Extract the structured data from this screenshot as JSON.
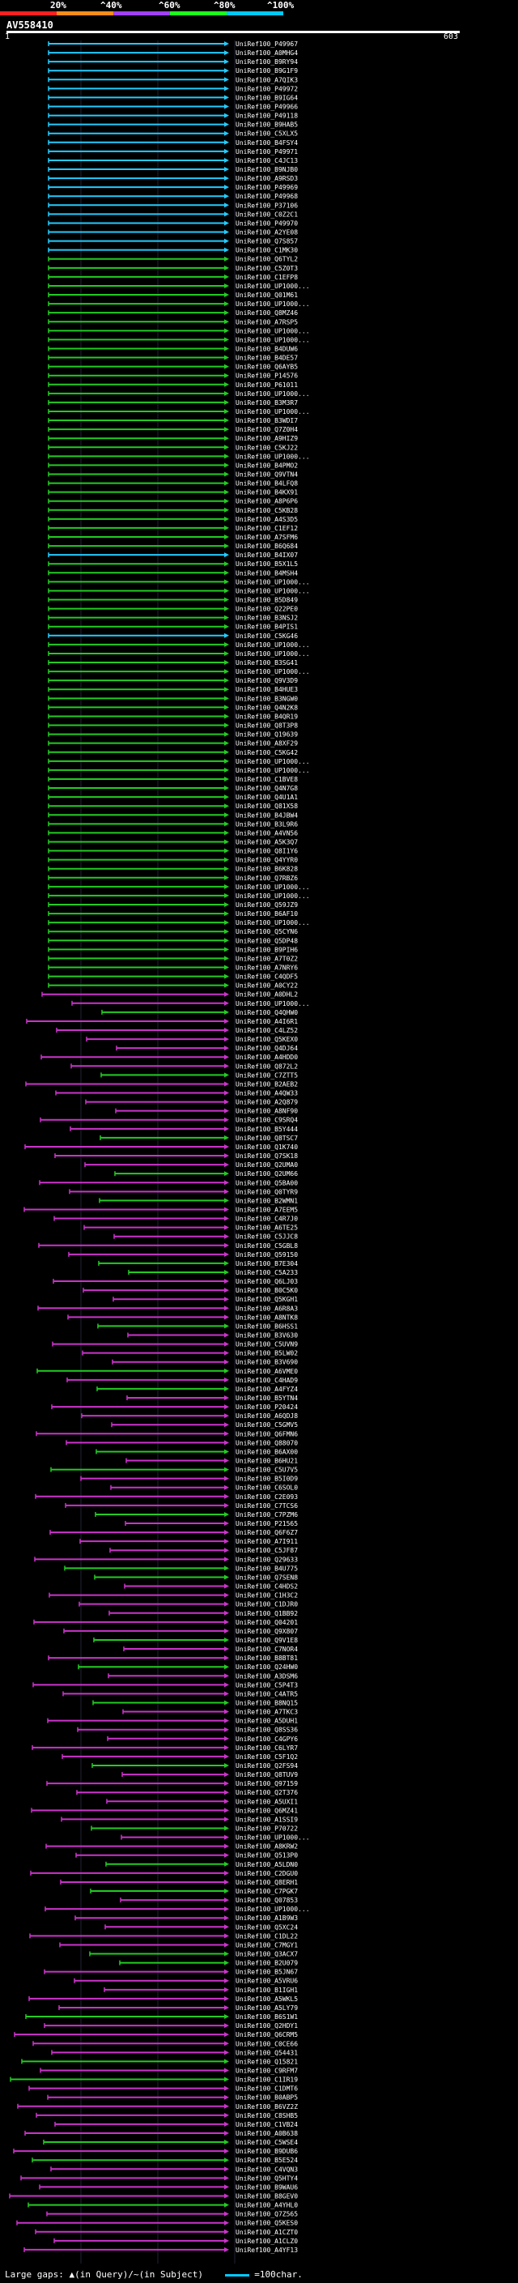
{
  "legend": {
    "ticks": [
      "20%",
      "^40%",
      "^60%",
      "^80%",
      "^100%"
    ],
    "colors": [
      "#ff2020",
      "#ff8c1a",
      "#a040ff",
      "#1aff1a",
      "#00c8ff"
    ]
  },
  "query": {
    "title": "AV558410",
    "start": "1",
    "end": "603"
  },
  "colors": {
    "high": "#22ccff",
    "mid": "#22cc22",
    "low": "#cc33cc"
  },
  "hits": [
    "UniRef100_P49967",
    "UniRef100_A0MHG4",
    "UniRef100_B9RY94",
    "UniRef100_B9G1F9",
    "UniRef100_A7QIK3",
    "UniRef100_P49972",
    "UniRef100_B9IG64",
    "UniRef100_P49966",
    "UniRef100_P49118",
    "UniRef100_B9HAB5",
    "UniRef100_C5XLX5",
    "UniRef100_B4FSY4",
    "UniRef100_P49971",
    "UniRef100_C4JC13",
    "UniRef100_B9NJB0",
    "UniRef100_A9RSD3",
    "UniRef100_P49969",
    "UniRef100_P49968",
    "UniRef100_P37106",
    "UniRef100_C0Z2C1",
    "UniRef100_P49970",
    "UniRef100_A2YE08",
    "UniRef100_Q7S857",
    "UniRef100_C1MK30",
    "UniRef100_Q6TYL2",
    "UniRef100_C5Z0T3",
    "UniRef100_C1EFP8",
    "UniRef100_UP1000...",
    "UniRef100_Q01M61",
    "UniRef100_UP1000...",
    "UniRef100_Q8MZ46",
    "UniRef100_A7RSP5",
    "UniRef100_UP1000...",
    "UniRef100_UP1000...",
    "UniRef100_B4DUW6",
    "UniRef100_B4DE57",
    "UniRef100_Q6AYB5",
    "UniRef100_P14576",
    "UniRef100_P61011",
    "UniRef100_UP1000...",
    "UniRef100_B3M3R7",
    "UniRef100_UP1000...",
    "UniRef100_B3WDI7",
    "UniRef100_Q7Z0H4",
    "UniRef100_A9HIZ9",
    "UniRef100_C5KJ22",
    "UniRef100_UP1000...",
    "UniRef100_B4PMO2",
    "UniRef100_Q9VTN4",
    "UniRef100_B4LFQ8",
    "UniRef100_B4KX91",
    "UniRef100_A8P6P6",
    "UniRef100_C5KB28",
    "UniRef100_A4S3D5",
    "UniRef100_C1EF12",
    "UniRef100_A7SFM6",
    "UniRef100_B6Q684",
    "UniRef100_B4IX07",
    "UniRef100_B5X1L5",
    "UniRef100_B4MSH4",
    "UniRef100_UP1000...",
    "UniRef100_UP1000...",
    "UniRef100_B5D849",
    "UniRef100_Q22PE0",
    "UniRef100_B3NSJ2",
    "UniRef100_B4PIS1",
    "UniRef100_C5KG46",
    "UniRef100_UP1000...",
    "UniRef100_UP1000...",
    "UniRef100_B3SG41",
    "UniRef100_UP1000...",
    "UniRef100_Q9V3D9",
    "UniRef100_B4HUE3",
    "UniRef100_B3NGW0",
    "UniRef100_Q4N2K8",
    "UniRef100_B4QR19",
    "UniRef100_Q8T3P8",
    "UniRef100_Q19639",
    "UniRef100_A8XF29",
    "UniRef100_C5KG42",
    "UniRef100_UP1000...",
    "UniRef100_UP1000...",
    "UniRef100_C1BVE8",
    "UniRef100_Q4N7G8",
    "UniRef100_Q4U1A1",
    "UniRef100_Q81X58",
    "UniRef100_B4JBW4",
    "UniRef100_B3L9R6",
    "UniRef100_A4VN56",
    "UniRef100_A5K3Q7",
    "UniRef100_Q8I1Y6",
    "UniRef100_Q4YYR0",
    "UniRef100_B6K828",
    "UniRef100_Q7RBZ6",
    "UniRef100_UP1000...",
    "UniRef100_UP1000...",
    "UniRef100_Q59JZ9",
    "UniRef100_B6AF10",
    "UniRef100_UP1000...",
    "UniRef100_Q5CYN6",
    "UniRef100_Q5DP48",
    "UniRef100_B9PIH6",
    "UniRef100_A7T0Z2",
    "UniRef100_A7NRY6",
    "UniRef100_C4QDF5",
    "UniRef100_A0CY22",
    "UniRef100_A0DHL2",
    "UniRef100_UP1000...",
    "UniRef100_Q4QHW0",
    "UniRef100_A4I6R1",
    "UniRef100_C4LZ52",
    "UniRef100_Q5KEX0",
    "UniRef100_Q4DJ64",
    "UniRef100_A4HDD0",
    "UniRef100_Q872L2",
    "UniRef100_C7ZTT5",
    "UniRef100_B2AEB2",
    "UniRef100_A4QW33",
    "UniRef100_A2Q879",
    "UniRef100_A8NF90",
    "UniRef100_C9SRQ4",
    "UniRef100_B5Y444",
    "UniRef100_Q8TSC7",
    "UniRef100_Q1K740",
    "UniRef100_Q7SK18",
    "UniRef100_Q2UMA0",
    "UniRef100_Q2UM66",
    "UniRef100_Q5BA00",
    "UniRef100_Q0TYR9",
    "UniRef100_B2WMN1",
    "UniRef100_A7EEM5",
    "UniRef100_C4R7J0",
    "UniRef100_A6TE25",
    "UniRef100_C5JJC8",
    "UniRef100_C5GBL8",
    "UniRef100_Q59150",
    "UniRef100_B7E304",
    "UniRef100_C5A233",
    "UniRef100_Q6LJ03",
    "UniRef100_B0C5K0",
    "UniRef100_Q5KGH1",
    "UniRef100_A6R8A3",
    "UniRef100_A8NTK8",
    "UniRef100_B6HSS1",
    "UniRef100_B3V630",
    "UniRef100_C5UVN9",
    "UniRef100_B5LW02",
    "UniRef100_B3V690",
    "UniRef100_A6VME0",
    "UniRef100_C4HAD9",
    "UniRef100_A4FYZ4",
    "UniRef100_B5YTN4",
    "UniRef100_P20424",
    "UniRef100_A6QDJ8",
    "UniRef100_C5GMV5",
    "UniRef100_Q6FMN6",
    "UniRef100_Q88070",
    "UniRef100_B6AX00",
    "UniRef100_B6HU21",
    "UniRef100_C5U7V5",
    "UniRef100_B5I0D9",
    "UniRef100_C6SOL0",
    "UniRef100_C2E093",
    "UniRef100_C7TCS6",
    "UniRef100_C7PZM6",
    "UniRef100_P21565",
    "UniRef100_Q6F6Z7",
    "UniRef100_A7I911",
    "UniRef100_C5JF87",
    "UniRef100_Q29633",
    "UniRef100_B4U775",
    "UniRef100_Q7SEN8",
    "UniRef100_C4HDS2",
    "UniRef100_C1H3C2",
    "UniRef100_C1DJR0",
    "UniRef100_Q1BB92",
    "UniRef100_Q04201",
    "UniRef100_Q9X807",
    "UniRef100_Q9V1E8",
    "UniRef100_C7NOR4",
    "UniRef100_B8BT81",
    "UniRef100_Q24HW0",
    "UniRef100_A3DSM6",
    "UniRef100_C5P4T3",
    "UniRef100_C4ATR5",
    "UniRef100_B8NQ15",
    "UniRef100_A7TKC3",
    "UniRef100_A5DUH1",
    "UniRef100_Q8SS36",
    "UniRef100_C4GPY6",
    "UniRef100_C6LYR7",
    "UniRef100_C5F1Q2",
    "UniRef100_Q2FS94",
    "UniRef100_Q8TUV9",
    "UniRef100_Q97159",
    "UniRef100_Q2T376",
    "UniRef100_A5UXI1",
    "UniRef100_Q6MZ41",
    "UniRef100_A1SSI9",
    "UniRef100_P70722",
    "UniRef100_UP1000...",
    "UniRef100_A8KRW2",
    "UniRef100_Q513P0",
    "UniRef100_A5LDN0",
    "UniRef100_C2DGU0",
    "UniRef100_Q8ERH1",
    "UniRef100_C7PGK7",
    "UniRef100_Q07853",
    "UniRef100_UP1000...",
    "UniRef100_A1B9W3",
    "UniRef100_Q5XC24",
    "UniRef100_C1DL22",
    "UniRef100_C7MGY1",
    "UniRef100_Q3ACX7",
    "UniRef100_B2U079",
    "UniRef100_B5JN67",
    "UniRef100_A5VRU6",
    "UniRef100_B1IGH1",
    "UniRef100_A5WKL5",
    "UniRef100_A5LY79",
    "UniRef100_B6S1W1",
    "UniRef100_Q2HDY1",
    "UniRef100_Q6CRM5",
    "UniRef100_C0CE66",
    "UniRef100_Q54431",
    "UniRef100_Q15821",
    "UniRef100_C9RFM7",
    "UniRef100_C1IR19",
    "UniRef100_C1DMT6",
    "UniRef100_B0ABP5",
    "UniRef100_B6VZ2Z",
    "UniRef100_C8SHB5",
    "UniRef100_C1VB24",
    "UniRef100_A0B638",
    "UniRef100_C5WSE4",
    "UniRef100_B9DUB6",
    "UniRef100_B5E524",
    "UniRef100_C4VQN3",
    "UniRef100_Q5HTY4",
    "UniRef100_B9WAU6",
    "UniRef100_B8GEV0",
    "UniRef100_A4YHL0",
    "UniRef100_Q7Z565",
    "UniRef100_Q5KES0",
    "UniRef100_A1CZT0",
    "UniRef100_A1CLZ0",
    "UniRef100_A4YF13"
  ],
  "footer": {
    "text": "Large gaps: ▲(in Query)/~(in Subject)",
    "scale": "=100char."
  }
}
